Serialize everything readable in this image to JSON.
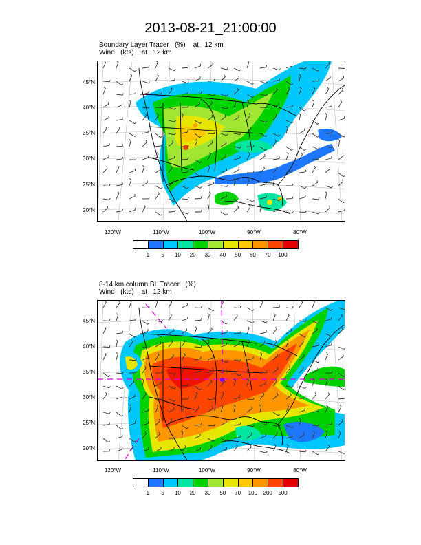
{
  "title": "2013-08-21_21:00:00",
  "panels": [
    {
      "subtitle1": "Boundary Layer Tracer   (%)    at   12 km",
      "subtitle2": "Wind   (kts)    at   12 km",
      "lat_labels": [
        "45°N",
        "40°N",
        "35°N",
        "30°N",
        "25°N",
        "20°N"
      ],
      "lon_labels": [
        "120°W",
        "110°W",
        "100°W",
        "90°W",
        "80°W"
      ],
      "colorbar_labels": [
        "1",
        "5",
        "10",
        "20",
        "30",
        "40",
        "50",
        "60",
        "70",
        "100"
      ],
      "colorbar_colors": [
        "#ffffff",
        "#1e78ff",
        "#00c8ff",
        "#00e6a0",
        "#00d200",
        "#a0e632",
        "#e6e600",
        "#ffc800",
        "#ff9600",
        "#ff4600",
        "#e60000"
      ]
    },
    {
      "subtitle1": "8-14 km column BL Tracer   (%)",
      "subtitle2": "Wind   (kts)    at   12 km",
      "lat_labels": [
        "45°N",
        "40°N",
        "35°N",
        "30°N",
        "25°N",
        "20°N"
      ],
      "lon_labels": [
        "120°W",
        "110°W",
        "100°W",
        "90°W",
        "80°W"
      ],
      "colorbar_labels": [
        "1",
        "5",
        "10",
        "20",
        "30",
        "50",
        "70",
        "100",
        "200",
        "500"
      ],
      "colorbar_colors": [
        "#ffffff",
        "#1e78ff",
        "#00c8ff",
        "#00e6a0",
        "#00d200",
        "#a0e632",
        "#e6e600",
        "#ffc800",
        "#ff9600",
        "#ff4600",
        "#e60000"
      ]
    }
  ]
}
